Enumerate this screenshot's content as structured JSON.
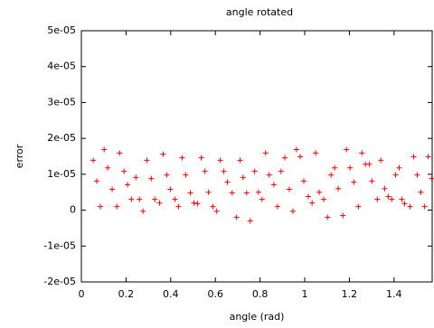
{
  "chart_data": {
    "type": "scatter",
    "title": "angle rotated",
    "xlabel": "angle (rad)",
    "ylabel": "error",
    "color": "#ff0000",
    "xlim": [
      0,
      1.5708
    ],
    "xticks": [
      0,
      0.2,
      0.4,
      0.6,
      0.8,
      1,
      1.2,
      1.4
    ],
    "ylim": [
      -2e-05,
      5e-05
    ],
    "yticks": [
      {
        "value": -2e-05,
        "label": "-2e-05"
      },
      {
        "value": -1e-05,
        "label": "-1e-05"
      },
      0,
      {
        "value": 1e-05,
        "label": "1e-05"
      },
      {
        "value": 2e-05,
        "label": "2e-05"
      },
      {
        "value": 3e-05,
        "label": "3e-05"
      },
      {
        "value": 4e-05,
        "label": "4e-05"
      },
      {
        "value": 5e-05,
        "label": "5e-05"
      }
    ],
    "x": [
      0.053,
      0.069,
      0.085,
      0.102,
      0.118,
      0.138,
      0.159,
      0.171,
      0.191,
      0.207,
      0.224,
      0.244,
      0.26,
      0.276,
      0.293,
      0.313,
      0.329,
      0.35,
      0.366,
      0.382,
      0.398,
      0.419,
      0.435,
      0.451,
      0.467,
      0.488,
      0.504,
      0.52,
      0.537,
      0.553,
      0.569,
      0.589,
      0.606,
      0.622,
      0.638,
      0.654,
      0.675,
      0.695,
      0.711,
      0.724,
      0.74,
      0.756,
      0.776,
      0.793,
      0.809,
      0.825,
      0.841,
      0.862,
      0.878,
      0.894,
      0.911,
      0.931,
      0.947,
      0.963,
      0.98,
      0.996,
      1.016,
      1.033,
      1.049,
      1.065,
      1.085,
      1.102,
      1.118,
      1.134,
      1.15,
      1.171,
      1.187,
      1.203,
      1.22,
      1.24,
      1.256,
      1.272,
      1.289,
      1.301,
      1.325,
      1.341,
      1.358,
      1.374,
      1.39,
      1.407,
      1.423,
      1.435,
      1.447,
      1.472,
      1.488,
      1.504,
      1.52,
      1.537,
      1.553,
      1.569
    ],
    "values": [
      1.39e-05,
      8.1e-06,
      1e-06,
      1.69e-05,
      1.18e-05,
      5.8e-06,
      1e-06,
      1.59e-05,
      1.08e-05,
      7.1e-06,
      3e-06,
      9.1e-06,
      3e-06,
      -3e-07,
      1.39e-05,
      8.8e-06,
      3e-06,
      2e-06,
      1.56e-05,
      9.8e-06,
      5.8e-06,
      3e-06,
      1e-06,
      1.46e-05,
      9.8e-06,
      4.8e-06,
      2e-06,
      1.8e-06,
      1.46e-05,
      1.08e-05,
      5e-06,
      1e-06,
      -3e-07,
      1.39e-05,
      1.08e-05,
      7.8e-06,
      4.8e-06,
      -2e-06,
      1.39e-05,
      9.1e-06,
      4.8e-06,
      -3e-06,
      1.08e-05,
      5e-06,
      3e-06,
      1.59e-05,
      9.8e-06,
      7.1e-06,
      1e-06,
      1.08e-05,
      1.46e-05,
      5.8e-06,
      -3e-07,
      1.69e-05,
      1.49e-05,
      8.1e-06,
      3.8e-06,
      2e-06,
      1.59e-05,
      5e-06,
      3e-06,
      -2e-06,
      9.8e-06,
      1.18e-05,
      6e-06,
      -1.5e-06,
      1.69e-05,
      1.18e-05,
      7.8e-06,
      1e-06,
      1.59e-05,
      1.28e-05,
      1.28e-05,
      8.1e-06,
      3e-06,
      1.39e-05,
      6e-06,
      3.8e-06,
      3e-06,
      9.8e-06,
      1.18e-05,
      3e-06,
      1.8e-06,
      1e-06,
      1.49e-05,
      9.8e-06,
      5e-06,
      1e-06,
      1.49e-05,
      8.8e-06
    ]
  }
}
